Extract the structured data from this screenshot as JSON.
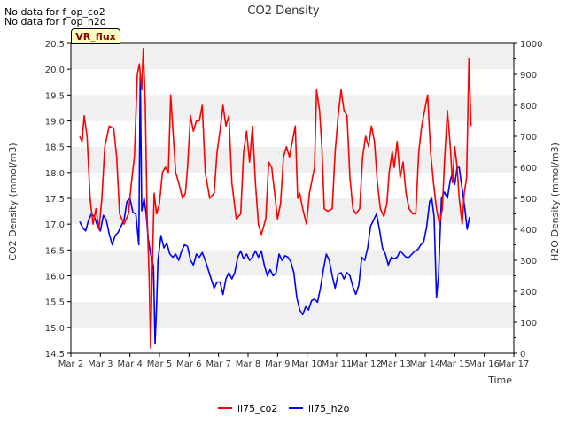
{
  "no_data_messages": [
    "No data for f_op_co2",
    "No data for f_op_h2o"
  ],
  "badge_label": "VR_flux",
  "chart_data": {
    "type": "line",
    "title": "CO2 Density",
    "xlabel": "Time",
    "ylabel": "CO2 Density (mmol/m3)",
    "ylabel_right": "H2O Density (mmol/m3)",
    "xlim": [
      2,
      17
    ],
    "ylim": [
      14.5,
      20.5
    ],
    "ylim_right": [
      0,
      1000
    ],
    "x_ticks": [
      2,
      3,
      4,
      5,
      6,
      7,
      8,
      9,
      10,
      11,
      12,
      13,
      14,
      15,
      16,
      17
    ],
    "x_tick_labels": [
      "Mar 2",
      "Mar 3",
      "Mar 4",
      "Mar 5",
      "Mar 6",
      "Mar 7",
      "Mar 8",
      "Mar 9",
      "Mar 10",
      "Mar 11",
      "Mar 12",
      "Mar 13",
      "Mar 14",
      "Mar 15",
      "Mar 16",
      "Mar 17"
    ],
    "y_ticks": [
      14.5,
      15.0,
      15.5,
      16.0,
      16.5,
      17.0,
      17.5,
      18.0,
      18.5,
      19.0,
      19.5,
      20.0,
      20.5
    ],
    "y_tick_labels": [
      "14.5",
      "15.0",
      "15.5",
      "16.0",
      "16.5",
      "17.0",
      "17.5",
      "18.0",
      "18.5",
      "19.0",
      "19.5",
      "20.0",
      "20.5"
    ],
    "y_ticks_right": [
      0,
      100,
      200,
      300,
      400,
      500,
      600,
      700,
      800,
      900,
      1000
    ],
    "y_tick_labels_right": [
      "0",
      "100",
      "200",
      "300",
      "400",
      "500",
      "600",
      "700",
      "800",
      "900",
      "1000"
    ],
    "grid": "horizontal banded",
    "legend_position": "bottom",
    "colors": {
      "li75_co2": "#ff0000",
      "li75_h2o": "#0000ff",
      "band": "#f0f0f0"
    },
    "series": [
      {
        "name": "li75_co2",
        "axis": "left",
        "points": [
          [
            2.3,
            18.7
          ],
          [
            2.38,
            18.6
          ],
          [
            2.45,
            19.1
          ],
          [
            2.55,
            18.7
          ],
          [
            2.65,
            17.5
          ],
          [
            2.75,
            17.0
          ],
          [
            2.85,
            17.3
          ],
          [
            2.95,
            16.9
          ],
          [
            3.05,
            17.5
          ],
          [
            3.15,
            18.5
          ],
          [
            3.3,
            18.9
          ],
          [
            3.45,
            18.85
          ],
          [
            3.55,
            18.3
          ],
          [
            3.65,
            17.2
          ],
          [
            3.8,
            17.0
          ],
          [
            3.95,
            17.2
          ],
          [
            4.05,
            17.8
          ],
          [
            4.15,
            18.3
          ],
          [
            4.25,
            19.9
          ],
          [
            4.32,
            20.1
          ],
          [
            4.4,
            19.6
          ],
          [
            4.45,
            20.4
          ],
          [
            4.52,
            19.3
          ],
          [
            4.58,
            17.2
          ],
          [
            4.65,
            16.0
          ],
          [
            4.7,
            14.6
          ],
          [
            4.75,
            16.0
          ],
          [
            4.82,
            17.6
          ],
          [
            4.9,
            17.2
          ],
          [
            5.0,
            17.4
          ],
          [
            5.1,
            18.0
          ],
          [
            5.2,
            18.1
          ],
          [
            5.3,
            18.0
          ],
          [
            5.38,
            19.5
          ],
          [
            5.48,
            18.6
          ],
          [
            5.55,
            18.0
          ],
          [
            5.65,
            17.8
          ],
          [
            5.78,
            17.5
          ],
          [
            5.88,
            17.6
          ],
          [
            5.95,
            18.1
          ],
          [
            6.05,
            19.1
          ],
          [
            6.15,
            18.8
          ],
          [
            6.25,
            19.0
          ],
          [
            6.35,
            19.0
          ],
          [
            6.45,
            19.3
          ],
          [
            6.55,
            18.0
          ],
          [
            6.7,
            17.5
          ],
          [
            6.85,
            17.6
          ],
          [
            6.95,
            18.4
          ],
          [
            7.05,
            18.8
          ],
          [
            7.15,
            19.3
          ],
          [
            7.25,
            18.9
          ],
          [
            7.35,
            19.1
          ],
          [
            7.45,
            17.8
          ],
          [
            7.6,
            17.1
          ],
          [
            7.75,
            17.2
          ],
          [
            7.85,
            18.4
          ],
          [
            7.95,
            18.8
          ],
          [
            8.05,
            18.2
          ],
          [
            8.15,
            18.9
          ],
          [
            8.25,
            17.8
          ],
          [
            8.35,
            17.0
          ],
          [
            8.45,
            16.8
          ],
          [
            8.6,
            17.1
          ],
          [
            8.7,
            18.2
          ],
          [
            8.8,
            18.1
          ],
          [
            8.9,
            17.6
          ],
          [
            9.0,
            17.1
          ],
          [
            9.1,
            17.4
          ],
          [
            9.2,
            18.3
          ],
          [
            9.3,
            18.5
          ],
          [
            9.4,
            18.3
          ],
          [
            9.5,
            18.6
          ],
          [
            9.6,
            18.9
          ],
          [
            9.68,
            17.5
          ],
          [
            9.75,
            17.6
          ],
          [
            9.85,
            17.3
          ],
          [
            9.98,
            17.0
          ],
          [
            10.08,
            17.6
          ],
          [
            10.18,
            17.9
          ],
          [
            10.25,
            18.1
          ],
          [
            10.32,
            19.6
          ],
          [
            10.42,
            19.2
          ],
          [
            10.5,
            18.5
          ],
          [
            10.58,
            17.3
          ],
          [
            10.7,
            17.25
          ],
          [
            10.85,
            17.3
          ],
          [
            10.95,
            18.4
          ],
          [
            11.05,
            19.1
          ],
          [
            11.15,
            19.6
          ],
          [
            11.25,
            19.2
          ],
          [
            11.35,
            19.1
          ],
          [
            11.45,
            17.9
          ],
          [
            11.55,
            17.3
          ],
          [
            11.65,
            17.2
          ],
          [
            11.78,
            17.3
          ],
          [
            11.88,
            18.3
          ],
          [
            11.98,
            18.7
          ],
          [
            12.08,
            18.5
          ],
          [
            12.18,
            18.9
          ],
          [
            12.28,
            18.6
          ],
          [
            12.38,
            17.8
          ],
          [
            12.48,
            17.3
          ],
          [
            12.6,
            17.15
          ],
          [
            12.7,
            17.4
          ],
          [
            12.78,
            18.0
          ],
          [
            12.88,
            18.4
          ],
          [
            12.95,
            18.1
          ],
          [
            13.05,
            18.6
          ],
          [
            13.15,
            17.9
          ],
          [
            13.25,
            18.2
          ],
          [
            13.35,
            17.6
          ],
          [
            13.45,
            17.3
          ],
          [
            13.58,
            17.2
          ],
          [
            13.68,
            17.2
          ],
          [
            13.78,
            18.4
          ],
          [
            13.88,
            18.9
          ],
          [
            13.98,
            19.2
          ],
          [
            14.08,
            19.5
          ],
          [
            14.18,
            18.4
          ],
          [
            14.28,
            17.8
          ],
          [
            14.38,
            17.3
          ],
          [
            14.48,
            17.0
          ],
          [
            14.58,
            17.3
          ],
          [
            14.65,
            18.2
          ],
          [
            14.75,
            19.2
          ],
          [
            14.85,
            18.5
          ],
          [
            14.92,
            17.8
          ],
          [
            15.0,
            18.5
          ],
          [
            15.08,
            18.1
          ],
          [
            15.15,
            17.5
          ],
          [
            15.25,
            17.0
          ],
          [
            15.32,
            17.6
          ],
          [
            15.4,
            17.9
          ],
          [
            15.48,
            20.2
          ],
          [
            15.55,
            18.9
          ]
        ]
      },
      {
        "name": "li75_h2o",
        "axis": "right",
        "points": [
          [
            2.3,
            425
          ],
          [
            2.4,
            405
          ],
          [
            2.5,
            395
          ],
          [
            2.6,
            430
          ],
          [
            2.7,
            450
          ],
          [
            2.8,
            440
          ],
          [
            2.9,
            410
          ],
          [
            3.0,
            395
          ],
          [
            3.1,
            445
          ],
          [
            3.2,
            430
          ],
          [
            3.3,
            385
          ],
          [
            3.4,
            350
          ],
          [
            3.5,
            380
          ],
          [
            3.6,
            390
          ],
          [
            3.7,
            410
          ],
          [
            3.8,
            430
          ],
          [
            3.9,
            490
          ],
          [
            4.0,
            500
          ],
          [
            4.1,
            455
          ],
          [
            4.2,
            450
          ],
          [
            4.3,
            350
          ],
          [
            4.35,
            900
          ],
          [
            4.4,
            460
          ],
          [
            4.48,
            500
          ],
          [
            4.55,
            450
          ],
          [
            4.62,
            370
          ],
          [
            4.7,
            320
          ],
          [
            4.8,
            280
          ],
          [
            4.85,
            30
          ],
          [
            4.9,
            150
          ],
          [
            4.95,
            300
          ],
          [
            5.05,
            380
          ],
          [
            5.15,
            340
          ],
          [
            5.25,
            355
          ],
          [
            5.35,
            320
          ],
          [
            5.45,
            310
          ],
          [
            5.55,
            320
          ],
          [
            5.65,
            300
          ],
          [
            5.75,
            330
          ],
          [
            5.85,
            350
          ],
          [
            5.95,
            345
          ],
          [
            6.05,
            300
          ],
          [
            6.15,
            285
          ],
          [
            6.25,
            320
          ],
          [
            6.35,
            310
          ],
          [
            6.45,
            325
          ],
          [
            6.55,
            300
          ],
          [
            6.65,
            270
          ],
          [
            6.75,
            240
          ],
          [
            6.85,
            210
          ],
          [
            6.95,
            230
          ],
          [
            7.05,
            230
          ],
          [
            7.15,
            190
          ],
          [
            7.25,
            240
          ],
          [
            7.35,
            260
          ],
          [
            7.45,
            240
          ],
          [
            7.55,
            260
          ],
          [
            7.65,
            310
          ],
          [
            7.75,
            330
          ],
          [
            7.85,
            305
          ],
          [
            7.95,
            320
          ],
          [
            8.05,
            300
          ],
          [
            8.15,
            310
          ],
          [
            8.25,
            330
          ],
          [
            8.35,
            310
          ],
          [
            8.45,
            330
          ],
          [
            8.55,
            285
          ],
          [
            8.65,
            250
          ],
          [
            8.75,
            270
          ],
          [
            8.85,
            250
          ],
          [
            8.95,
            260
          ],
          [
            9.05,
            320
          ],
          [
            9.15,
            300
          ],
          [
            9.25,
            315
          ],
          [
            9.35,
            310
          ],
          [
            9.45,
            295
          ],
          [
            9.55,
            260
          ],
          [
            9.65,
            180
          ],
          [
            9.75,
            140
          ],
          [
            9.85,
            125
          ],
          [
            9.95,
            150
          ],
          [
            10.05,
            140
          ],
          [
            10.15,
            170
          ],
          [
            10.25,
            175
          ],
          [
            10.35,
            165
          ],
          [
            10.45,
            210
          ],
          [
            10.55,
            270
          ],
          [
            10.65,
            320
          ],
          [
            10.75,
            300
          ],
          [
            10.85,
            250
          ],
          [
            10.95,
            210
          ],
          [
            11.05,
            255
          ],
          [
            11.15,
            260
          ],
          [
            11.25,
            240
          ],
          [
            11.35,
            260
          ],
          [
            11.45,
            250
          ],
          [
            11.55,
            215
          ],
          [
            11.65,
            190
          ],
          [
            11.75,
            220
          ],
          [
            11.85,
            310
          ],
          [
            11.95,
            300
          ],
          [
            12.05,
            340
          ],
          [
            12.15,
            410
          ],
          [
            12.25,
            430
          ],
          [
            12.35,
            450
          ],
          [
            12.45,
            400
          ],
          [
            12.55,
            340
          ],
          [
            12.65,
            320
          ],
          [
            12.75,
            285
          ],
          [
            12.85,
            310
          ],
          [
            12.95,
            305
          ],
          [
            13.05,
            310
          ],
          [
            13.15,
            330
          ],
          [
            13.25,
            320
          ],
          [
            13.35,
            310
          ],
          [
            13.45,
            310
          ],
          [
            13.55,
            320
          ],
          [
            13.65,
            330
          ],
          [
            13.75,
            335
          ],
          [
            13.85,
            350
          ],
          [
            13.95,
            360
          ],
          [
            14.05,
            410
          ],
          [
            14.15,
            490
          ],
          [
            14.22,
            500
          ],
          [
            14.3,
            440
          ],
          [
            14.38,
            180
          ],
          [
            14.45,
            250
          ],
          [
            14.55,
            500
          ],
          [
            14.65,
            520
          ],
          [
            14.75,
            500
          ],
          [
            14.85,
            560
          ],
          [
            14.92,
            580
          ],
          [
            15.0,
            545
          ],
          [
            15.08,
            600
          ],
          [
            15.15,
            600
          ],
          [
            15.25,
            530
          ],
          [
            15.35,
            460
          ],
          [
            15.42,
            400
          ],
          [
            15.5,
            440
          ]
        ]
      }
    ]
  }
}
